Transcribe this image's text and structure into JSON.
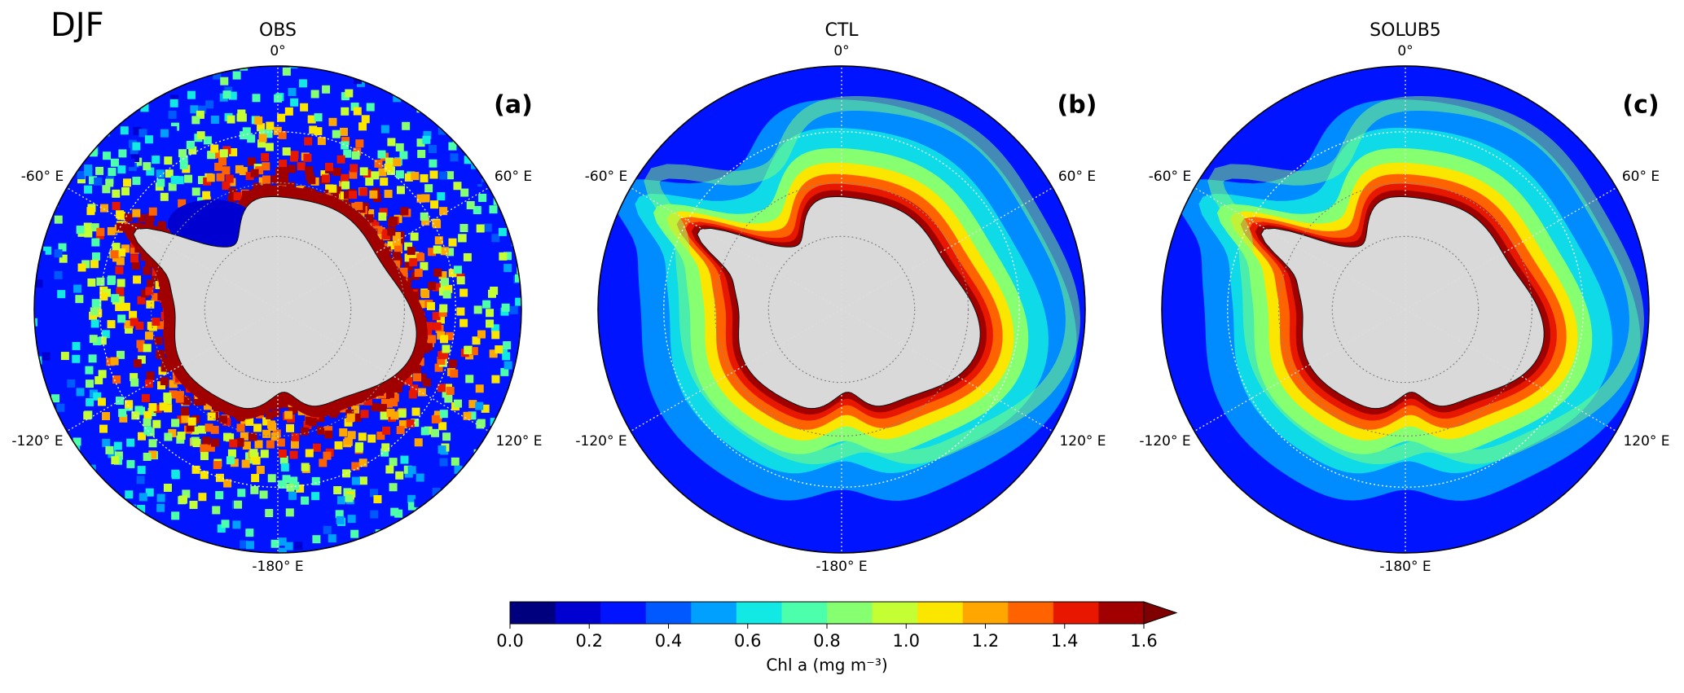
{
  "figure": {
    "season": "DJF",
    "panels": [
      {
        "title": "OBS",
        "label": "(a)"
      },
      {
        "title": "CTL",
        "label": "(b)"
      },
      {
        "title": "SOLUB5",
        "label": "(c)"
      }
    ],
    "lon_labels": {
      "top": "0°",
      "upper_right": "60° E",
      "lower_right": "120° E",
      "bottom": "-180° E",
      "lower_left": "-120° E",
      "upper_left": "-60° E"
    },
    "colorbar": {
      "label": "Chl a (mg m⁻³)",
      "range": [
        0,
        1.6
      ],
      "ticks": [
        {
          "value": 0,
          "label": "0.0"
        },
        {
          "value": 0.2,
          "label": "0.2"
        },
        {
          "value": 0.4,
          "label": "0.4"
        },
        {
          "value": 0.6,
          "label": "0.6"
        },
        {
          "value": 0.8,
          "label": "0.8"
        },
        {
          "value": 1,
          "label": "1.0"
        },
        {
          "value": 1.2,
          "label": "1.2"
        },
        {
          "value": 1.4,
          "label": "1.4"
        },
        {
          "value": 1.6,
          "label": "1.6"
        }
      ],
      "colors": [
        "#00007f",
        "#0000d1",
        "#0014ff",
        "#0058ff",
        "#00a0ff",
        "#12e8e4",
        "#4cffaa",
        "#86ff70",
        "#c4ff33",
        "#fbe600",
        "#ffa700",
        "#ff6300",
        "#e81800",
        "#a10000"
      ],
      "extend_color": "#7f0000"
    }
  }
}
